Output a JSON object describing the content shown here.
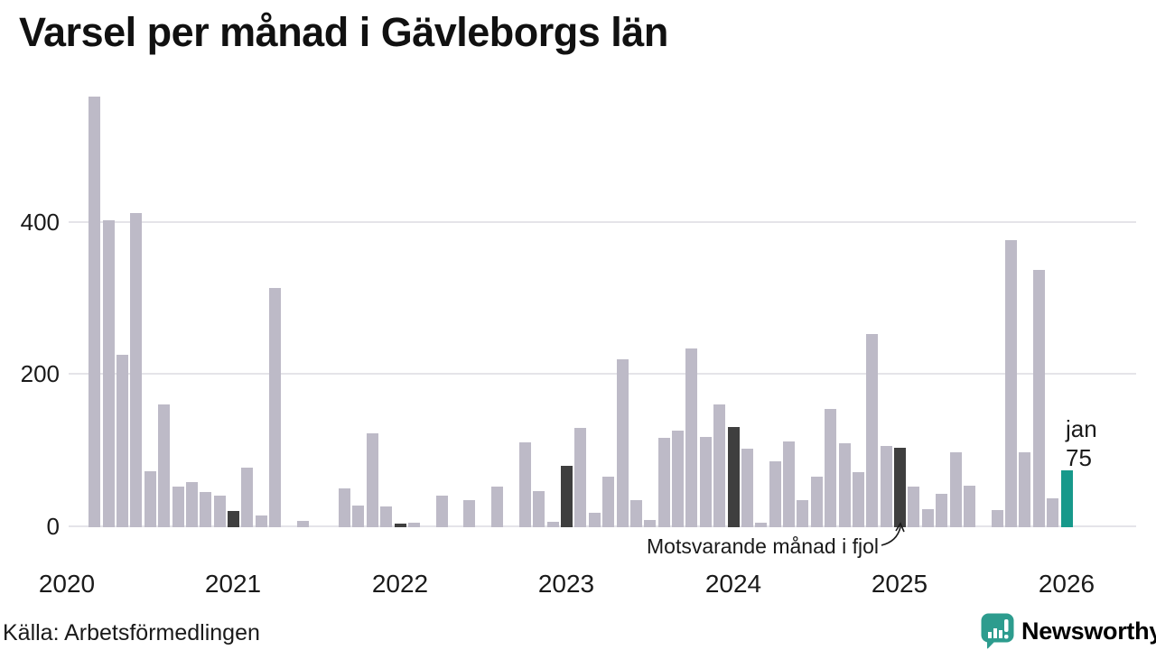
{
  "title": "Varsel per månad i Gävleborgs län",
  "source": "Källa: Arbetsförmedlingen",
  "brand": {
    "name": "Newsworthy",
    "color": "#2d9c8e"
  },
  "annotation": {
    "text": "Motsvarande månad i fjol"
  },
  "current_label": {
    "month": "jan",
    "value": "75"
  },
  "colors": {
    "bar": "#bdbac7",
    "compare_bar": "#3f3f3f",
    "current_bar": "#17998b",
    "grid": "#e5e4e9",
    "text": "#1a1a1a"
  },
  "chart_data": {
    "type": "bar",
    "title": "Varsel per månad i Gävleborgs län",
    "xlabel": "",
    "ylabel": "",
    "ylim": [
      0,
      580
    ],
    "yticks": [
      "0",
      "200",
      "400"
    ],
    "year_ticks": [
      "2020",
      "2021",
      "2022",
      "2023",
      "2024",
      "2025",
      "2026"
    ],
    "series": [
      {
        "month": "2020-03",
        "value": 566,
        "kind": "normal"
      },
      {
        "month": "2020-04",
        "value": 403,
        "kind": "normal"
      },
      {
        "month": "2020-05",
        "value": 227,
        "kind": "normal"
      },
      {
        "month": "2020-06",
        "value": 413,
        "kind": "normal"
      },
      {
        "month": "2020-07",
        "value": 73,
        "kind": "normal"
      },
      {
        "month": "2020-08",
        "value": 162,
        "kind": "normal"
      },
      {
        "month": "2020-09",
        "value": 54,
        "kind": "normal"
      },
      {
        "month": "2020-10",
        "value": 59,
        "kind": "normal"
      },
      {
        "month": "2020-11",
        "value": 46,
        "kind": "normal"
      },
      {
        "month": "2020-12",
        "value": 41,
        "kind": "normal"
      },
      {
        "month": "2021-01",
        "value": 21,
        "kind": "compare"
      },
      {
        "month": "2021-02",
        "value": 78,
        "kind": "normal"
      },
      {
        "month": "2021-03",
        "value": 16,
        "kind": "normal"
      },
      {
        "month": "2021-04",
        "value": 315,
        "kind": "normal"
      },
      {
        "month": "2021-05",
        "value": 0,
        "kind": "normal"
      },
      {
        "month": "2021-06",
        "value": 8,
        "kind": "normal"
      },
      {
        "month": "2021-07",
        "value": 0,
        "kind": "normal"
      },
      {
        "month": "2021-08",
        "value": 0,
        "kind": "normal"
      },
      {
        "month": "2021-09",
        "value": 51,
        "kind": "normal"
      },
      {
        "month": "2021-10",
        "value": 29,
        "kind": "normal"
      },
      {
        "month": "2021-11",
        "value": 124,
        "kind": "normal"
      },
      {
        "month": "2021-12",
        "value": 27,
        "kind": "normal"
      },
      {
        "month": "2022-01",
        "value": 5,
        "kind": "compare"
      },
      {
        "month": "2022-02",
        "value": 6,
        "kind": "normal"
      },
      {
        "month": "2022-03",
        "value": 0,
        "kind": "normal"
      },
      {
        "month": "2022-04",
        "value": 42,
        "kind": "normal"
      },
      {
        "month": "2022-05",
        "value": 0,
        "kind": "normal"
      },
      {
        "month": "2022-06",
        "value": 36,
        "kind": "normal"
      },
      {
        "month": "2022-07",
        "value": 0,
        "kind": "normal"
      },
      {
        "month": "2022-08",
        "value": 53,
        "kind": "normal"
      },
      {
        "month": "2022-09",
        "value": 0,
        "kind": "normal"
      },
      {
        "month": "2022-10",
        "value": 112,
        "kind": "normal"
      },
      {
        "month": "2022-11",
        "value": 48,
        "kind": "normal"
      },
      {
        "month": "2022-12",
        "value": 7,
        "kind": "normal"
      },
      {
        "month": "2023-01",
        "value": 81,
        "kind": "compare"
      },
      {
        "month": "2023-02",
        "value": 130,
        "kind": "normal"
      },
      {
        "month": "2023-03",
        "value": 19,
        "kind": "normal"
      },
      {
        "month": "2023-04",
        "value": 67,
        "kind": "normal"
      },
      {
        "month": "2023-05",
        "value": 221,
        "kind": "normal"
      },
      {
        "month": "2023-06",
        "value": 36,
        "kind": "normal"
      },
      {
        "month": "2023-07",
        "value": 10,
        "kind": "normal"
      },
      {
        "month": "2023-08",
        "value": 118,
        "kind": "normal"
      },
      {
        "month": "2023-09",
        "value": 127,
        "kind": "normal"
      },
      {
        "month": "2023-10",
        "value": 235,
        "kind": "normal"
      },
      {
        "month": "2023-11",
        "value": 119,
        "kind": "normal"
      },
      {
        "month": "2023-12",
        "value": 161,
        "kind": "normal"
      },
      {
        "month": "2024-01",
        "value": 132,
        "kind": "compare"
      },
      {
        "month": "2024-02",
        "value": 103,
        "kind": "normal"
      },
      {
        "month": "2024-03",
        "value": 6,
        "kind": "normal"
      },
      {
        "month": "2024-04",
        "value": 87,
        "kind": "normal"
      },
      {
        "month": "2024-05",
        "value": 113,
        "kind": "normal"
      },
      {
        "month": "2024-06",
        "value": 36,
        "kind": "normal"
      },
      {
        "month": "2024-07",
        "value": 67,
        "kind": "normal"
      },
      {
        "month": "2024-08",
        "value": 155,
        "kind": "normal"
      },
      {
        "month": "2024-09",
        "value": 110,
        "kind": "normal"
      },
      {
        "month": "2024-10",
        "value": 72,
        "kind": "normal"
      },
      {
        "month": "2024-11",
        "value": 254,
        "kind": "normal"
      },
      {
        "month": "2024-12",
        "value": 107,
        "kind": "normal"
      },
      {
        "month": "2025-01",
        "value": 104,
        "kind": "compare"
      },
      {
        "month": "2025-02",
        "value": 53,
        "kind": "normal"
      },
      {
        "month": "2025-03",
        "value": 24,
        "kind": "normal"
      },
      {
        "month": "2025-04",
        "value": 44,
        "kind": "normal"
      },
      {
        "month": "2025-05",
        "value": 98,
        "kind": "normal"
      },
      {
        "month": "2025-06",
        "value": 55,
        "kind": "normal"
      },
      {
        "month": "2025-07",
        "value": 0,
        "kind": "normal"
      },
      {
        "month": "2025-08",
        "value": 22,
        "kind": "normal"
      },
      {
        "month": "2025-09",
        "value": 377,
        "kind": "normal"
      },
      {
        "month": "2025-10",
        "value": 99,
        "kind": "normal"
      },
      {
        "month": "2025-11",
        "value": 338,
        "kind": "normal"
      },
      {
        "month": "2025-12",
        "value": 38,
        "kind": "normal"
      },
      {
        "month": "2026-01",
        "value": 75,
        "kind": "current"
      }
    ]
  }
}
